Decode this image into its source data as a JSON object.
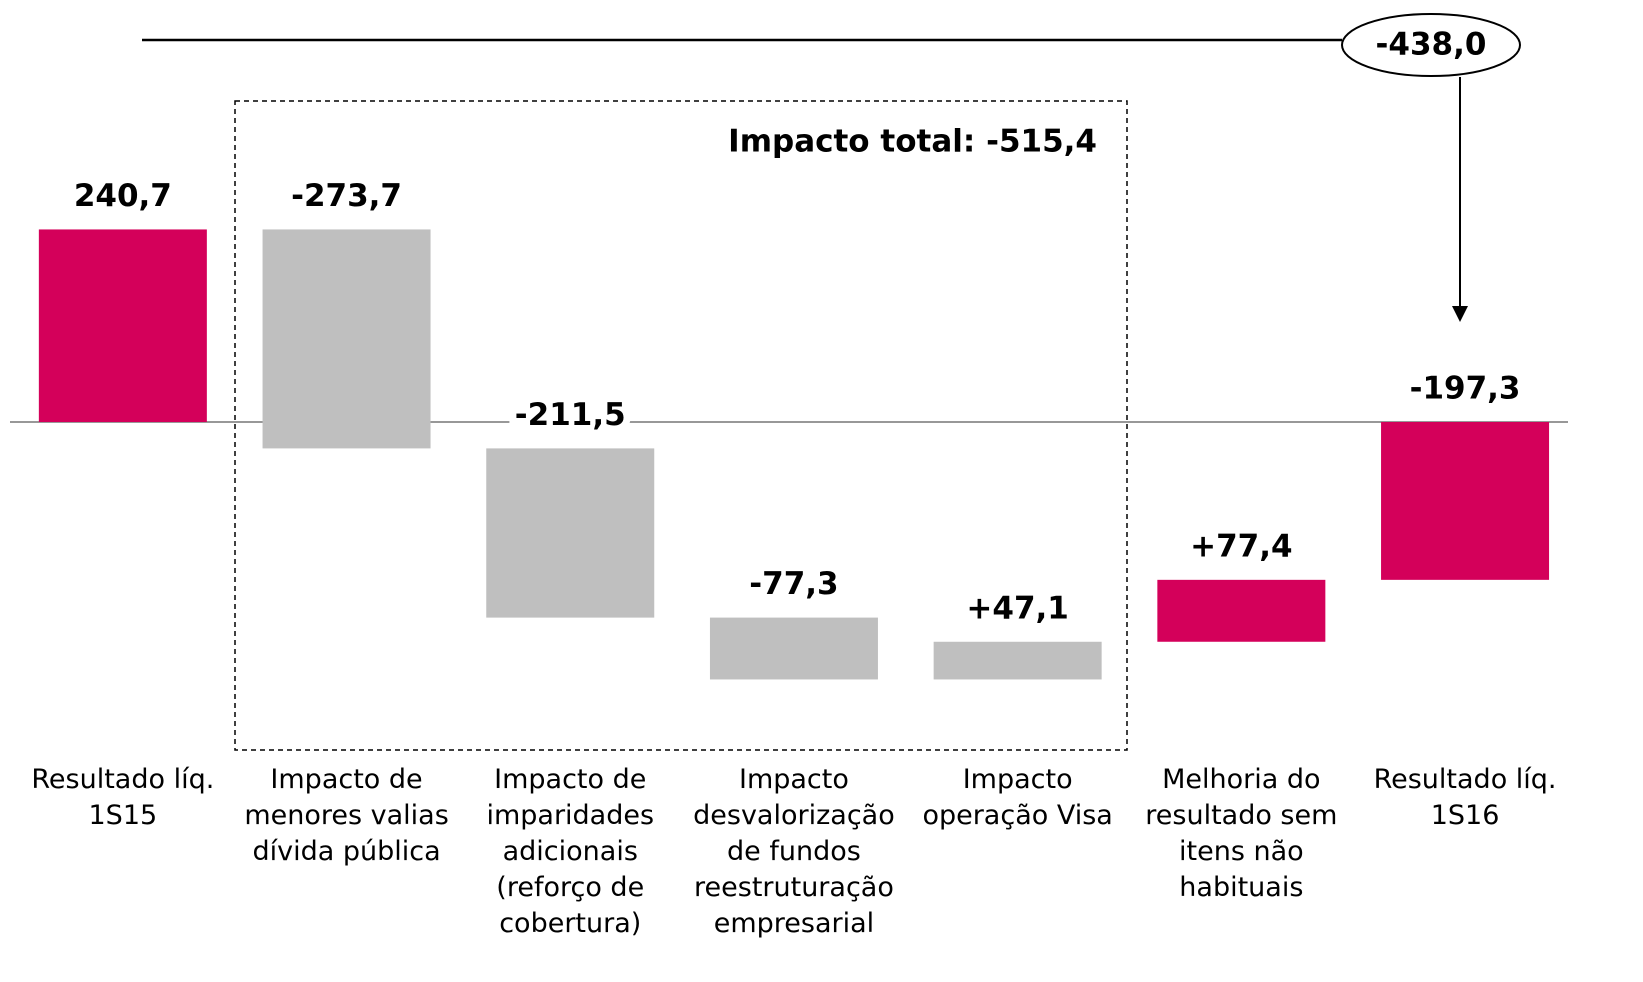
{
  "chart_data": {
    "type": "waterfall",
    "categories": [
      "Resultado líq.\n1S15",
      "Impacto de\nmenores valias\ndívida pública",
      "Impacto de\nimparidades\nadicionais\n(reforço de\ncobertura)",
      "Impacto\ndesvalorização\nde fundos\nreestruturação\nempresarial",
      "Impacto\noperação Visa",
      "Melhoria do\nresultado sem\nitens não\nhabituais",
      "Resultado líq.\n1S16"
    ],
    "values": [
      240.7,
      -273.7,
      -211.5,
      -77.3,
      47.1,
      77.4,
      -197.3
    ],
    "value_labels": [
      "240,7",
      "-273,7",
      "-211,5",
      "-77,3",
      "+47,1",
      "+77,4",
      "-197,3"
    ],
    "colors": [
      "#d4005a",
      "#bfbfbf",
      "#bfbfbf",
      "#bfbfbf",
      "#bfbfbf",
      "#d4005a",
      "#d4005a"
    ],
    "last_is_total": true,
    "ylim": [
      -700,
      527.5
    ],
    "annotations": [
      "Impacto total: -515,4",
      "-438,0"
    ]
  }
}
